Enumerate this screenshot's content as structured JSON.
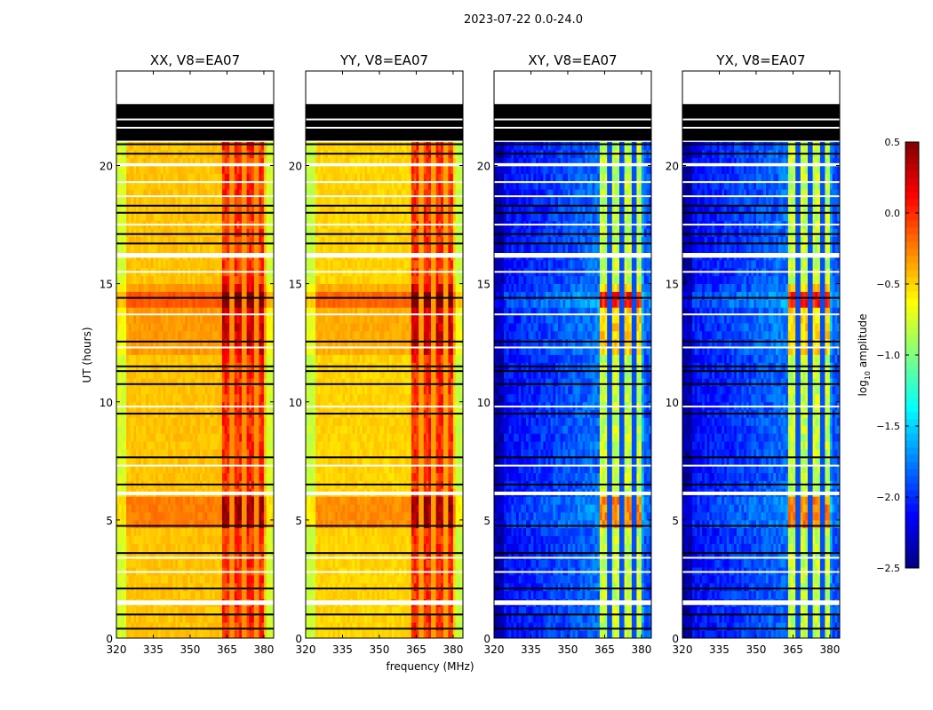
{
  "chart_data": {
    "type": "heatmap",
    "title": "2023-07-22 0.0-24.0",
    "xlabel": "frequency (MHz)",
    "ylabel": "UT (hours)",
    "xlim": [
      320,
      384
    ],
    "ylim": [
      0,
      24
    ],
    "xticks": [
      "320",
      "335",
      "350",
      "365",
      "380"
    ],
    "xtick_values": [
      320,
      335,
      350,
      365,
      380
    ],
    "yticks": [
      "0",
      "5",
      "10",
      "15",
      "20"
    ],
    "ytick_values": [
      0,
      5,
      10,
      15,
      20
    ],
    "colorbar": {
      "label": "log10 amplitude",
      "label_main": "log",
      "label_sub": "10",
      "label_rest": " amplitude",
      "clim": [
        -2.5,
        0.5
      ],
      "ticks": [
        "0.5",
        "0.0",
        "−0.5",
        "−1.0",
        "−1.5",
        "−2.0",
        "−2.5"
      ],
      "tick_values": [
        0.5,
        0.0,
        -0.5,
        -1.0,
        -1.5,
        -2.0,
        -2.5
      ],
      "colormap": "jet"
    },
    "rfi_band_mhz": [
      363,
      380
    ],
    "rfi_gap_mhz": [
      367,
      372,
      377
    ],
    "no_data_hours": [
      [
        22.65,
        24
      ]
    ],
    "flagged_block_hours": [
      [
        21.05,
        22.6
      ]
    ],
    "flagged_lines_hours": [
      0.4,
      1.0,
      2.1,
      3.6,
      4.75,
      6.5,
      7.65,
      9.5,
      10.75,
      11.3,
      11.5,
      12.55,
      14.4,
      16.7,
      17.1,
      18.0,
      18.3,
      20.5,
      20.9
    ],
    "white_gaps_hours": [
      [
        1.4,
        1.6
      ],
      [
        6.05,
        6.2
      ],
      [
        16.1,
        16.3
      ],
      [
        19.97,
        20.1
      ]
    ],
    "white_lines_hours": [
      2.8,
      3.4,
      7.3,
      9.8,
      12.3,
      13.7,
      15.5,
      17.5,
      18.7,
      19.3,
      21.6,
      21.95
    ],
    "elevated_periods_hours": [
      [
        4.8,
        6.0,
        0.35
      ],
      [
        12.0,
        15.0,
        0.2
      ],
      [
        14.1,
        14.5,
        0.35
      ]
    ],
    "panels": [
      {
        "title": "XX, V8=EA07",
        "base": -0.45,
        "low_edge": -0.75,
        "rfi": 0.0,
        "gap": -0.3
      },
      {
        "title": "YY, V8=EA07",
        "base": -0.5,
        "low_edge": -0.8,
        "rfi": 0.0,
        "gap": -0.35
      },
      {
        "title": "XY, V8=EA07",
        "base": -2.15,
        "low_edge": -2.4,
        "rfi": -0.8,
        "gap": -1.9
      },
      {
        "title": "YX, V8=EA07",
        "base": -2.15,
        "low_edge": -2.4,
        "rfi": -0.8,
        "gap": -1.9
      }
    ]
  }
}
